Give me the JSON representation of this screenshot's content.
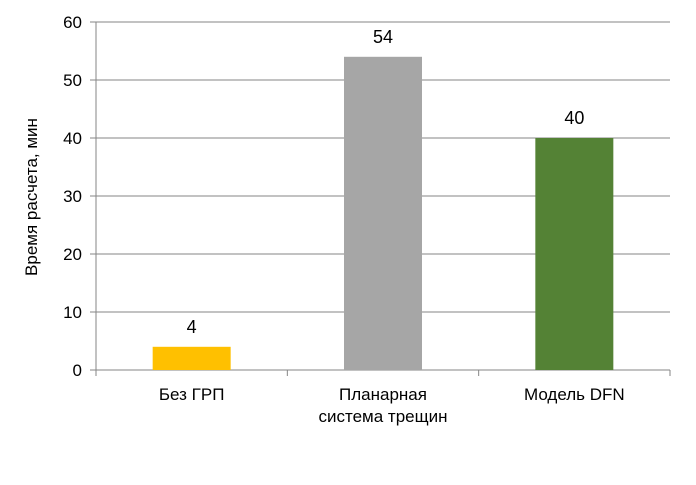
{
  "chart_data": {
    "type": "bar",
    "categories": [
      [
        "Без ГРП"
      ],
      [
        "Планарная",
        "система трещин"
      ],
      [
        "Модель  DFN"
      ]
    ],
    "values": [
      4,
      54,
      40
    ],
    "colors": [
      "#FFC000",
      "#A6A6A6",
      "#548235"
    ],
    "data_labels": [
      "4",
      "54",
      "40"
    ],
    "ylabel": "Время расчета, мин",
    "ylim": [
      0,
      60
    ],
    "yticks": [
      0,
      10,
      20,
      30,
      40,
      50,
      60
    ],
    "ytick_labels": [
      "0",
      "10",
      "20",
      "30",
      "40",
      "50",
      "60"
    ],
    "grid": true,
    "legend": "none"
  }
}
